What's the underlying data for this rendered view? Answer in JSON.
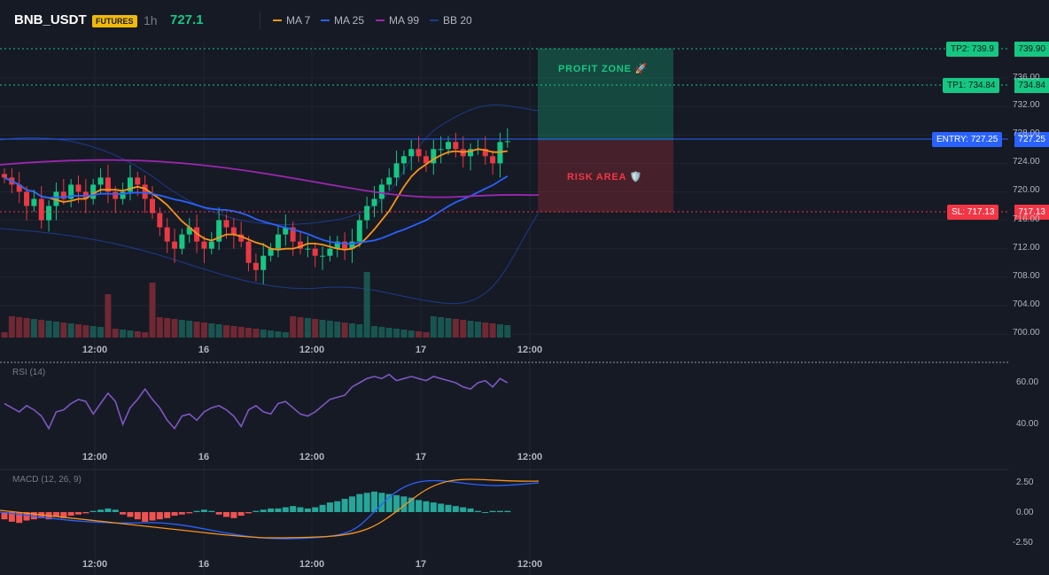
{
  "header": {
    "symbol": "BNB_USDT",
    "badge": "FUTURES",
    "timeframe": "1h",
    "price": "727.1",
    "legend": [
      {
        "label": "MA 7",
        "color": "#f7931a"
      },
      {
        "label": "MA 25",
        "color": "#2962ff"
      },
      {
        "label": "MA 99",
        "color": "#9c27b0"
      },
      {
        "label": "BB 20",
        "color": "#1e3a8a"
      }
    ]
  },
  "zones": {
    "profit_label": "PROFIT ZONE 🚀",
    "risk_label": "RISK AREA 🛡️"
  },
  "levels": {
    "tp2": {
      "tag": "TP2: 739.9",
      "axis": "739.90",
      "value": 739.9
    },
    "tp1": {
      "tag": "TP1: 734.84",
      "axis": "734.84",
      "value": 734.84
    },
    "entry": {
      "tag": "ENTRY: 727.25",
      "axis": "727.25",
      "value": 727.25
    },
    "sl": {
      "tag": "SL: 717.13",
      "axis": "717.13",
      "value": 717.13
    }
  },
  "price_axis": {
    "labels": [
      "736.00",
      "732.00",
      "728.00",
      "724.00",
      "720.00",
      "716.00",
      "712.00",
      "708.00",
      "704.00",
      "700.00"
    ]
  },
  "rsi": {
    "title": "RSI (14)",
    "labels": [
      "60.00",
      "40.00"
    ]
  },
  "macd": {
    "title": "MACD (12, 26, 9)",
    "labels": [
      "2.50",
      "0.00",
      "-2.50"
    ]
  },
  "time_axis": {
    "labels": [
      "12:00",
      "16",
      "12:00",
      "17",
      "12:00"
    ]
  },
  "colors": {
    "background": "#161a25",
    "up": "#16c784",
    "down": "#ea3943",
    "entry": "#2962ff",
    "take_profit": "#16c784",
    "stop_loss": "#f23645",
    "rsi_line": "#7e57c2"
  }
}
